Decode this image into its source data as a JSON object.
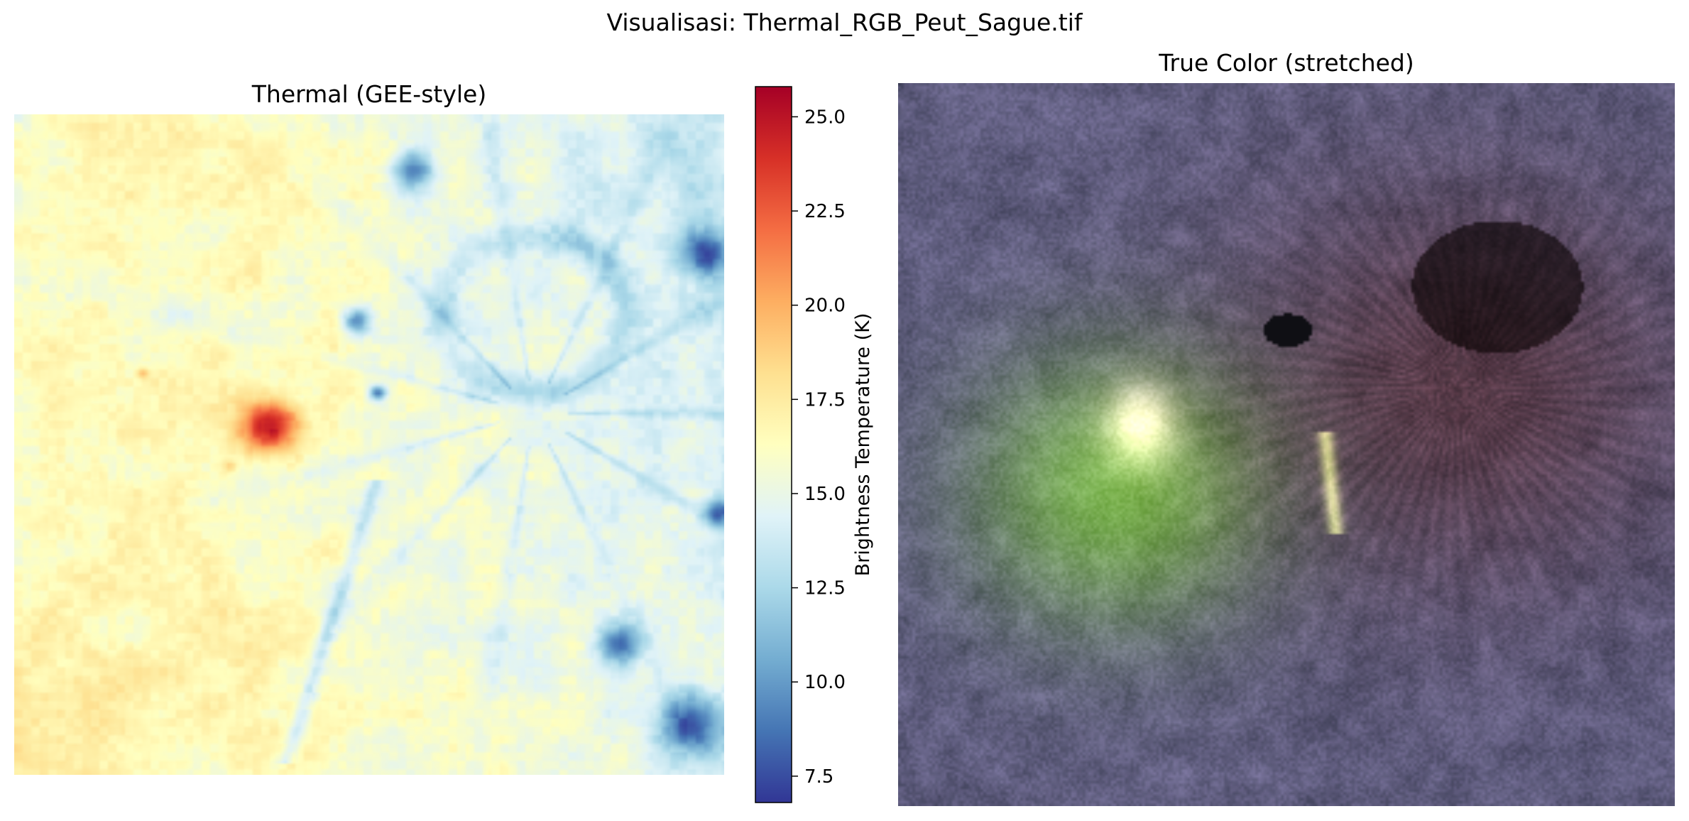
{
  "figure": {
    "suptitle": "Visualisasi: Thermal_RGB_Peut_Sague.tif"
  },
  "panels": {
    "thermal": {
      "title": "Thermal (GEE-style)",
      "colormap": "RdYlBu_r"
    },
    "truecolor": {
      "title": "True Color (stretched)"
    }
  },
  "chart_data": [
    {
      "type": "heatmap",
      "title": "Thermal (GEE-style)",
      "colormap": "RdYlBu_r",
      "colorbar": {
        "label": "Brightness Temperature (K)",
        "range": [
          6.8,
          25.8
        ],
        "ticks": [
          7.5,
          10.0,
          12.5,
          15.0,
          17.5,
          20.0,
          22.5,
          25.0
        ],
        "tick_labels": [
          "7.5",
          "10.0",
          "12.5",
          "15.0",
          "17.5",
          "20.0",
          "22.5",
          "25.0"
        ]
      },
      "axes": "off",
      "features": [
        {
          "description": "hot spot",
          "approx_value": 25.0
        },
        {
          "description": "cold valleys",
          "approx_value": 9.0
        }
      ],
      "background_value": 16.5
    },
    {
      "type": "image",
      "title": "True Color (stretched)",
      "axes": "off"
    }
  ],
  "colors": {
    "colormap_stops": [
      "#313695",
      "#4575b4",
      "#74add1",
      "#abd9e9",
      "#e0f3f8",
      "#ffffbf",
      "#fee090",
      "#fdae61",
      "#f46d43",
      "#d73027",
      "#a50026"
    ]
  }
}
